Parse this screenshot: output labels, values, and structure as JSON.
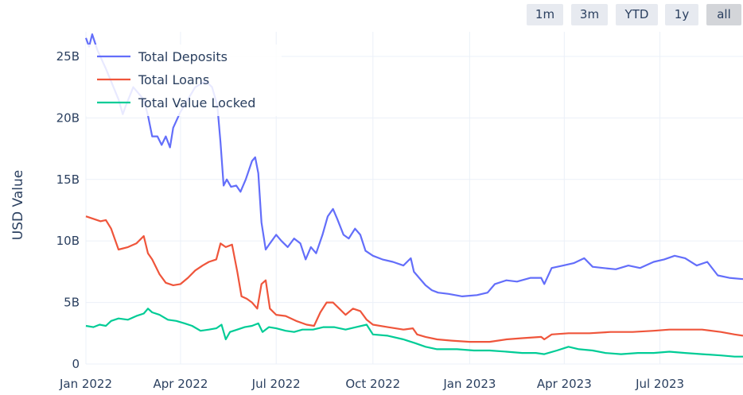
{
  "range_selector": {
    "buttons": [
      {
        "label": "1m",
        "active": false
      },
      {
        "label": "3m",
        "active": false
      },
      {
        "label": "YTD",
        "active": false
      },
      {
        "label": "1y",
        "active": false
      },
      {
        "label": "all",
        "active": true
      }
    ]
  },
  "chart_data": {
    "type": "line",
    "title": "",
    "xlabel": "",
    "ylabel": "USD Value",
    "ylim": [
      0,
      27
    ],
    "y_unit": "billions USD",
    "y_ticks": [
      {
        "value": 0,
        "label": "0"
      },
      {
        "value": 5,
        "label": "5B"
      },
      {
        "value": 10,
        "label": "10B"
      },
      {
        "value": 15,
        "label": "15B"
      },
      {
        "value": 20,
        "label": "20B"
      },
      {
        "value": 25,
        "label": "25B"
      }
    ],
    "x_ticks": [
      "Jan 2022",
      "Apr 2022",
      "Jul 2022",
      "Oct 2022",
      "Jan 2023",
      "Apr 2023",
      "Jul 2023"
    ],
    "xlim": [
      "2022-01-01",
      "2023-09-18"
    ],
    "grid": true,
    "legend_position": "top-left",
    "colors": {
      "Total Deposits": "#636efa",
      "Total Loans": "#ef553b",
      "Total Value Locked": "#00cc96"
    },
    "series": [
      {
        "name": "Total Deposits",
        "points": [
          [
            "2022-01-01",
            26.5
          ],
          [
            "2022-01-04",
            25.8
          ],
          [
            "2022-01-07",
            26.8
          ],
          [
            "2022-01-12",
            25.5
          ],
          [
            "2022-01-20",
            24.0
          ],
          [
            "2022-02-01",
            21.5
          ],
          [
            "2022-02-05",
            20.3
          ],
          [
            "2022-02-08",
            21.0
          ],
          [
            "2022-02-15",
            22.5
          ],
          [
            "2022-02-25",
            21.5
          ],
          [
            "2022-03-01",
            20.2
          ],
          [
            "2022-03-05",
            18.5
          ],
          [
            "2022-03-10",
            18.5
          ],
          [
            "2022-03-14",
            17.8
          ],
          [
            "2022-03-18",
            18.5
          ],
          [
            "2022-03-22",
            17.6
          ],
          [
            "2022-03-25",
            19.2
          ],
          [
            "2022-04-01",
            20.5
          ],
          [
            "2022-04-08",
            21.5
          ],
          [
            "2022-04-15",
            22.5
          ],
          [
            "2022-04-25",
            23.0
          ],
          [
            "2022-05-01",
            22.5
          ],
          [
            "2022-05-06",
            21.0
          ],
          [
            "2022-05-09",
            18.0
          ],
          [
            "2022-05-12",
            14.5
          ],
          [
            "2022-05-15",
            15.0
          ],
          [
            "2022-05-19",
            14.4
          ],
          [
            "2022-05-24",
            14.5
          ],
          [
            "2022-05-28",
            14.0
          ],
          [
            "2022-06-02",
            15.0
          ],
          [
            "2022-06-08",
            16.5
          ],
          [
            "2022-06-11",
            16.8
          ],
          [
            "2022-06-14",
            15.5
          ],
          [
            "2022-06-17",
            11.5
          ],
          [
            "2022-06-21",
            9.3
          ],
          [
            "2022-06-25",
            9.8
          ],
          [
            "2022-07-01",
            10.5
          ],
          [
            "2022-07-06",
            10.0
          ],
          [
            "2022-07-12",
            9.5
          ],
          [
            "2022-07-18",
            10.2
          ],
          [
            "2022-07-24",
            9.8
          ],
          [
            "2022-07-29",
            8.5
          ],
          [
            "2022-08-03",
            9.5
          ],
          [
            "2022-08-08",
            9.0
          ],
          [
            "2022-08-14",
            10.5
          ],
          [
            "2022-08-19",
            12.0
          ],
          [
            "2022-08-24",
            12.6
          ],
          [
            "2022-08-28",
            11.8
          ],
          [
            "2022-09-03",
            10.5
          ],
          [
            "2022-09-08",
            10.2
          ],
          [
            "2022-09-14",
            11.0
          ],
          [
            "2022-09-19",
            10.5
          ],
          [
            "2022-09-24",
            9.2
          ],
          [
            "2022-10-01",
            8.8
          ],
          [
            "2022-10-10",
            8.5
          ],
          [
            "2022-10-20",
            8.3
          ],
          [
            "2022-10-30",
            8.0
          ],
          [
            "2022-11-06",
            8.6
          ],
          [
            "2022-11-09",
            7.5
          ],
          [
            "2022-11-14",
            7.0
          ],
          [
            "2022-11-20",
            6.4
          ],
          [
            "2022-11-26",
            6.0
          ],
          [
            "2022-12-02",
            5.8
          ],
          [
            "2022-12-12",
            5.7
          ],
          [
            "2022-12-25",
            5.5
          ],
          [
            "2023-01-08",
            5.6
          ],
          [
            "2023-01-18",
            5.8
          ],
          [
            "2023-01-25",
            6.5
          ],
          [
            "2023-02-05",
            6.8
          ],
          [
            "2023-02-15",
            6.7
          ],
          [
            "2023-02-28",
            7.0
          ],
          [
            "2023-03-10",
            7.0
          ],
          [
            "2023-03-13",
            6.5
          ],
          [
            "2023-03-20",
            7.8
          ],
          [
            "2023-03-31",
            8.0
          ],
          [
            "2023-04-10",
            8.2
          ],
          [
            "2023-04-20",
            8.6
          ],
          [
            "2023-04-28",
            7.9
          ],
          [
            "2023-05-08",
            7.8
          ],
          [
            "2023-05-20",
            7.7
          ],
          [
            "2023-06-01",
            8.0
          ],
          [
            "2023-06-12",
            7.8
          ],
          [
            "2023-06-25",
            8.3
          ],
          [
            "2023-07-05",
            8.5
          ],
          [
            "2023-07-15",
            8.8
          ],
          [
            "2023-07-25",
            8.6
          ],
          [
            "2023-08-05",
            8.0
          ],
          [
            "2023-08-15",
            8.3
          ],
          [
            "2023-08-25",
            7.2
          ],
          [
            "2023-09-05",
            7.0
          ],
          [
            "2023-09-18",
            6.9
          ]
        ]
      },
      {
        "name": "Total Loans",
        "points": [
          [
            "2022-01-01",
            12.0
          ],
          [
            "2022-01-08",
            11.8
          ],
          [
            "2022-01-15",
            11.6
          ],
          [
            "2022-01-20",
            11.7
          ],
          [
            "2022-01-25",
            11.0
          ],
          [
            "2022-02-01",
            9.3
          ],
          [
            "2022-02-10",
            9.5
          ],
          [
            "2022-02-18",
            9.8
          ],
          [
            "2022-02-25",
            10.4
          ],
          [
            "2022-03-01",
            9.0
          ],
          [
            "2022-03-05",
            8.5
          ],
          [
            "2022-03-12",
            7.3
          ],
          [
            "2022-03-18",
            6.6
          ],
          [
            "2022-03-25",
            6.4
          ],
          [
            "2022-04-01",
            6.5
          ],
          [
            "2022-04-08",
            7.0
          ],
          [
            "2022-04-15",
            7.6
          ],
          [
            "2022-04-22",
            8.0
          ],
          [
            "2022-04-28",
            8.3
          ],
          [
            "2022-05-05",
            8.5
          ],
          [
            "2022-05-09",
            9.8
          ],
          [
            "2022-05-14",
            9.5
          ],
          [
            "2022-05-20",
            9.7
          ],
          [
            "2022-05-25",
            7.5
          ],
          [
            "2022-05-29",
            5.5
          ],
          [
            "2022-06-03",
            5.3
          ],
          [
            "2022-06-08",
            5.0
          ],
          [
            "2022-06-13",
            4.5
          ],
          [
            "2022-06-17",
            6.5
          ],
          [
            "2022-06-21",
            6.8
          ],
          [
            "2022-06-25",
            4.5
          ],
          [
            "2022-07-01",
            4.0
          ],
          [
            "2022-07-10",
            3.9
          ],
          [
            "2022-07-20",
            3.5
          ],
          [
            "2022-07-30",
            3.2
          ],
          [
            "2022-08-06",
            3.1
          ],
          [
            "2022-08-12",
            4.2
          ],
          [
            "2022-08-18",
            5.0
          ],
          [
            "2022-08-24",
            5.0
          ],
          [
            "2022-08-30",
            4.5
          ],
          [
            "2022-09-05",
            4.0
          ],
          [
            "2022-09-12",
            4.5
          ],
          [
            "2022-09-19",
            4.3
          ],
          [
            "2022-09-25",
            3.6
          ],
          [
            "2022-10-01",
            3.2
          ],
          [
            "2022-10-15",
            3.0
          ],
          [
            "2022-10-30",
            2.8
          ],
          [
            "2022-11-08",
            2.9
          ],
          [
            "2022-11-12",
            2.4
          ],
          [
            "2022-11-20",
            2.2
          ],
          [
            "2022-12-01",
            2.0
          ],
          [
            "2022-12-15",
            1.9
          ],
          [
            "2023-01-01",
            1.8
          ],
          [
            "2023-01-20",
            1.8
          ],
          [
            "2023-02-05",
            2.0
          ],
          [
            "2023-02-20",
            2.1
          ],
          [
            "2023-03-10",
            2.2
          ],
          [
            "2023-03-13",
            2.0
          ],
          [
            "2023-03-20",
            2.4
          ],
          [
            "2023-04-05",
            2.5
          ],
          [
            "2023-04-25",
            2.5
          ],
          [
            "2023-05-15",
            2.6
          ],
          [
            "2023-06-05",
            2.6
          ],
          [
            "2023-06-25",
            2.7
          ],
          [
            "2023-07-10",
            2.8
          ],
          [
            "2023-07-25",
            2.8
          ],
          [
            "2023-08-10",
            2.8
          ],
          [
            "2023-08-28",
            2.6
          ],
          [
            "2023-09-10",
            2.4
          ],
          [
            "2023-09-18",
            2.3
          ]
        ]
      },
      {
        "name": "Total Value Locked",
        "points": [
          [
            "2022-01-01",
            3.1
          ],
          [
            "2022-01-08",
            3.0
          ],
          [
            "2022-01-14",
            3.2
          ],
          [
            "2022-01-20",
            3.1
          ],
          [
            "2022-01-25",
            3.5
          ],
          [
            "2022-02-01",
            3.7
          ],
          [
            "2022-02-10",
            3.6
          ],
          [
            "2022-02-18",
            3.9
          ],
          [
            "2022-02-25",
            4.1
          ],
          [
            "2022-03-01",
            4.5
          ],
          [
            "2022-03-05",
            4.2
          ],
          [
            "2022-03-12",
            4.0
          ],
          [
            "2022-03-20",
            3.6
          ],
          [
            "2022-03-28",
            3.5
          ],
          [
            "2022-04-05",
            3.3
          ],
          [
            "2022-04-12",
            3.1
          ],
          [
            "2022-04-20",
            2.7
          ],
          [
            "2022-04-28",
            2.8
          ],
          [
            "2022-05-05",
            2.9
          ],
          [
            "2022-05-10",
            3.2
          ],
          [
            "2022-05-14",
            2.0
          ],
          [
            "2022-05-18",
            2.6
          ],
          [
            "2022-05-25",
            2.8
          ],
          [
            "2022-06-01",
            3.0
          ],
          [
            "2022-06-08",
            3.1
          ],
          [
            "2022-06-14",
            3.3
          ],
          [
            "2022-06-18",
            2.6
          ],
          [
            "2022-06-24",
            3.0
          ],
          [
            "2022-07-01",
            2.9
          ],
          [
            "2022-07-10",
            2.7
          ],
          [
            "2022-07-18",
            2.6
          ],
          [
            "2022-07-26",
            2.8
          ],
          [
            "2022-08-05",
            2.8
          ],
          [
            "2022-08-15",
            3.0
          ],
          [
            "2022-08-25",
            3.0
          ],
          [
            "2022-09-05",
            2.8
          ],
          [
            "2022-09-15",
            3.0
          ],
          [
            "2022-09-25",
            3.2
          ],
          [
            "2022-10-01",
            2.4
          ],
          [
            "2022-10-15",
            2.3
          ],
          [
            "2022-10-30",
            2.0
          ],
          [
            "2022-11-10",
            1.7
          ],
          [
            "2022-11-20",
            1.4
          ],
          [
            "2022-12-01",
            1.2
          ],
          [
            "2022-12-20",
            1.2
          ],
          [
            "2023-01-05",
            1.1
          ],
          [
            "2023-01-20",
            1.1
          ],
          [
            "2023-02-05",
            1.0
          ],
          [
            "2023-02-20",
            0.9
          ],
          [
            "2023-03-05",
            0.9
          ],
          [
            "2023-03-13",
            0.8
          ],
          [
            "2023-03-25",
            1.1
          ],
          [
            "2023-04-05",
            1.4
          ],
          [
            "2023-04-15",
            1.2
          ],
          [
            "2023-04-28",
            1.1
          ],
          [
            "2023-05-10",
            0.9
          ],
          [
            "2023-05-25",
            0.8
          ],
          [
            "2023-06-10",
            0.9
          ],
          [
            "2023-06-25",
            0.9
          ],
          [
            "2023-07-10",
            1.0
          ],
          [
            "2023-07-25",
            0.9
          ],
          [
            "2023-08-10",
            0.8
          ],
          [
            "2023-08-28",
            0.7
          ],
          [
            "2023-09-10",
            0.6
          ],
          [
            "2023-09-18",
            0.6
          ]
        ]
      }
    ]
  }
}
